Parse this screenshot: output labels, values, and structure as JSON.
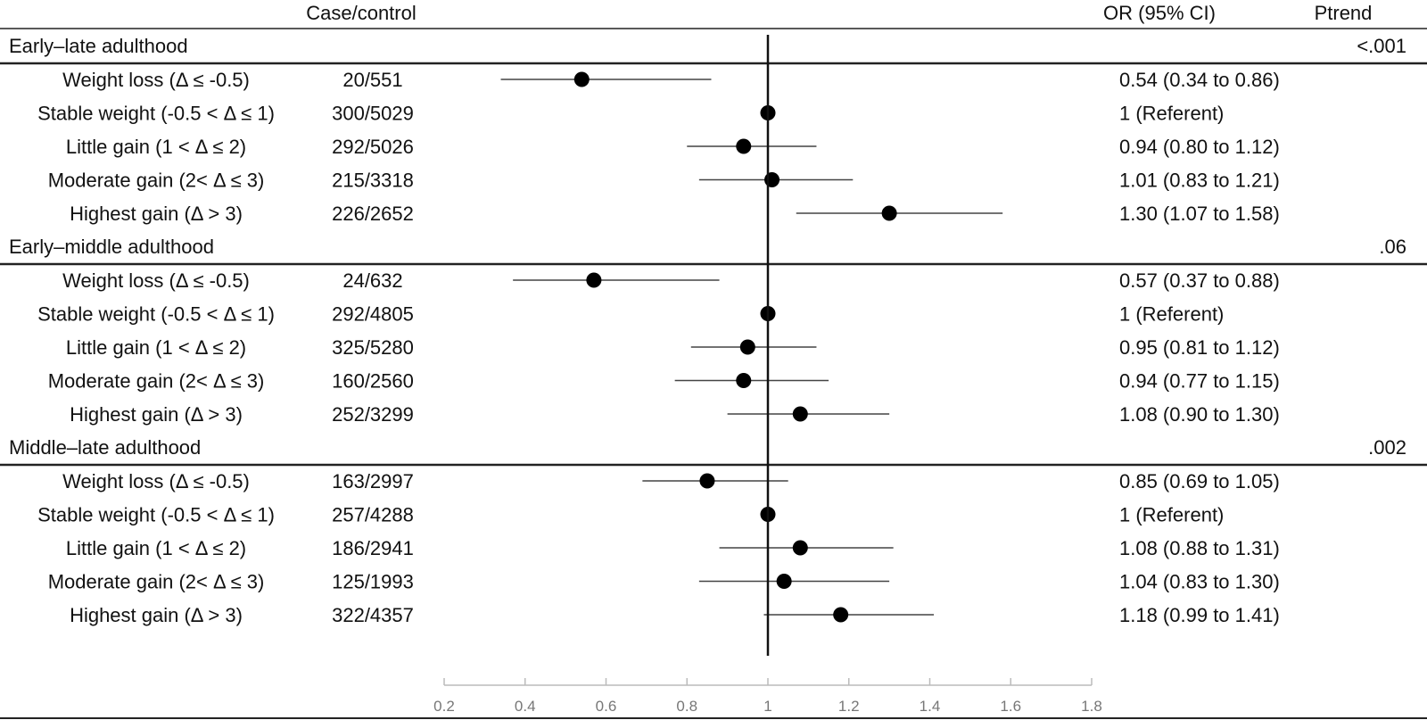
{
  "headers": {
    "case_control": "Case/control",
    "or_ci": "OR (95% CI)",
    "ptrend": "Ptrend"
  },
  "chart_data": {
    "type": "forest",
    "reference_value": 1,
    "xlim": [
      0.2,
      1.8
    ],
    "x_ticks": [
      "0.2",
      "0.4",
      "0.6",
      "0.8",
      "1",
      "1.2",
      "1.4",
      "1.6",
      "1.8"
    ],
    "groups": [
      {
        "name": "Early–late adulthood",
        "ptrend": "<.001",
        "rows": [
          {
            "label": "Weight loss (Δ ≤ -0.5)",
            "cases": "20/551",
            "or": 0.54,
            "lo": 0.34,
            "hi": 0.86,
            "text": "0.54 (0.34 to 0.86)"
          },
          {
            "label": "Stable weight (-0.5 < Δ ≤ 1)",
            "cases": "300/5029",
            "or": 1.0,
            "lo": null,
            "hi": null,
            "text": "1 (Referent)"
          },
          {
            "label": "Little gain  (1 < Δ ≤ 2)",
            "cases": "292/5026",
            "or": 0.94,
            "lo": 0.8,
            "hi": 1.12,
            "text": "0.94 (0.80 to 1.12)"
          },
          {
            "label": "Moderate gain  (2< Δ ≤ 3)",
            "cases": "215/3318",
            "or": 1.01,
            "lo": 0.83,
            "hi": 1.21,
            "text": "1.01 (0.83 to 1.21)"
          },
          {
            "label": "Highest gain  (Δ > 3)",
            "cases": "226/2652",
            "or": 1.3,
            "lo": 1.07,
            "hi": 1.58,
            "text": "1.30 (1.07 to 1.58)"
          }
        ]
      },
      {
        "name": "Early–middle adulthood",
        "ptrend": ".06",
        "rows": [
          {
            "label": "Weight loss (Δ ≤ -0.5)",
            "cases": "24/632",
            "or": 0.57,
            "lo": 0.37,
            "hi": 0.88,
            "text": "0.57 (0.37 to 0.88)"
          },
          {
            "label": "Stable weight (-0.5 < Δ ≤ 1)",
            "cases": "292/4805",
            "or": 1.0,
            "lo": null,
            "hi": null,
            "text": "1 (Referent)"
          },
          {
            "label": "Little gain  (1 < Δ ≤ 2)",
            "cases": "325/5280",
            "or": 0.95,
            "lo": 0.81,
            "hi": 1.12,
            "text": "0.95 (0.81 to 1.12)"
          },
          {
            "label": "Moderate gain  (2< Δ ≤ 3)",
            "cases": "160/2560",
            "or": 0.94,
            "lo": 0.77,
            "hi": 1.15,
            "text": "0.94 (0.77 to 1.15)"
          },
          {
            "label": "Highest gain  (Δ > 3)",
            "cases": "252/3299",
            "or": 1.08,
            "lo": 0.9,
            "hi": 1.3,
            "text": "1.08 (0.90 to 1.30)"
          }
        ]
      },
      {
        "name": "Middle–late adulthood",
        "ptrend": ".002",
        "rows": [
          {
            "label": "Weight loss (Δ ≤ -0.5)",
            "cases": "163/2997",
            "or": 0.85,
            "lo": 0.69,
            "hi": 1.05,
            "text": "0.85 (0.69 to 1.05)"
          },
          {
            "label": "Stable weight (-0.5 < Δ ≤ 1)",
            "cases": "257/4288",
            "or": 1.0,
            "lo": null,
            "hi": null,
            "text": "1 (Referent)"
          },
          {
            "label": "Little gain  (1 < Δ ≤ 2)",
            "cases": "186/2941",
            "or": 1.08,
            "lo": 0.88,
            "hi": 1.31,
            "text": "1.08 (0.88 to 1.31)"
          },
          {
            "label": "Moderate gain  (2< Δ ≤ 3)",
            "cases": "125/1993",
            "or": 1.04,
            "lo": 0.83,
            "hi": 1.3,
            "text": "1.04 (0.83 to 1.30)"
          },
          {
            "label": "Highest gain  (Δ > 3)",
            "cases": "322/4357",
            "or": 1.18,
            "lo": 0.99,
            "hi": 1.41,
            "text": "1.18 (0.99 to 1.41)"
          }
        ]
      }
    ]
  }
}
